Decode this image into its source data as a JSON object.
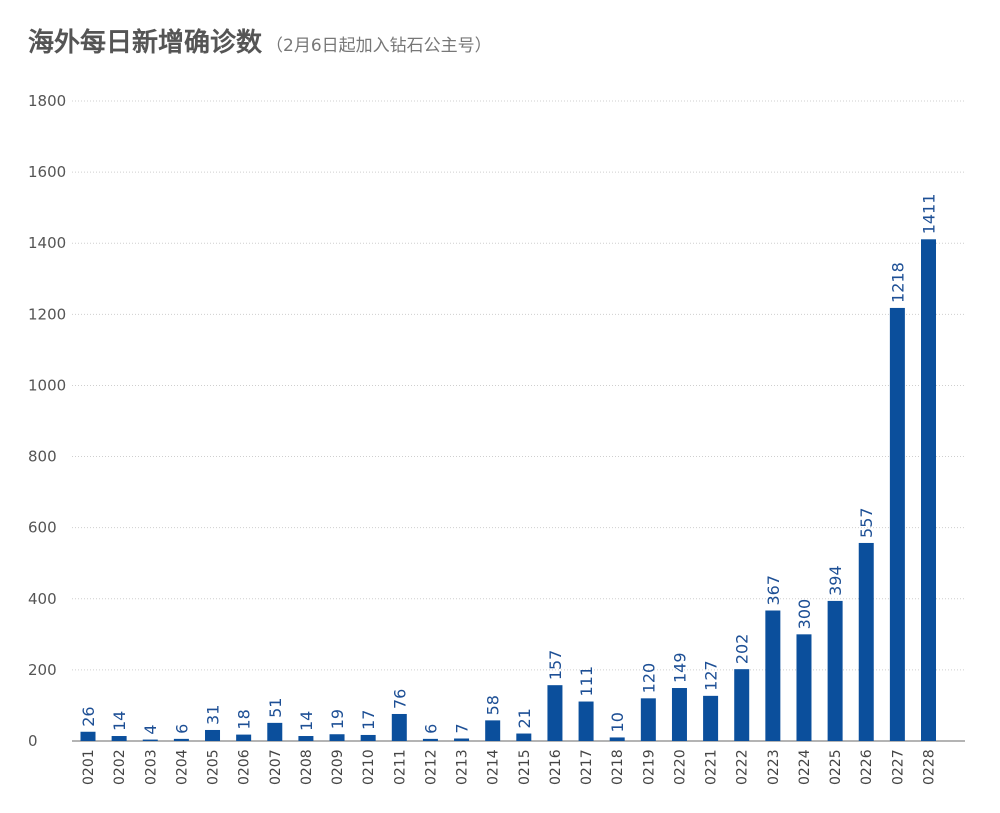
{
  "chart_data": {
    "type": "bar",
    "title": "海外每日新增确诊数",
    "subtitle": "（2月6日起加入钻石公主号）",
    "xlabel": "",
    "ylabel": "",
    "ylim": [
      0,
      1800
    ],
    "yticks": [
      0,
      200,
      400,
      600,
      800,
      1000,
      1200,
      1400,
      1600,
      1800
    ],
    "grid": true,
    "bar_color": "#0b4f9c",
    "label_color": "#1d4f95",
    "categories": [
      "0201",
      "0202",
      "0203",
      "0204",
      "0205",
      "0206",
      "0207",
      "0208",
      "0209",
      "0210",
      "0211",
      "0212",
      "0213",
      "0214",
      "0215",
      "0216",
      "0217",
      "0218",
      "0219",
      "0220",
      "0221",
      "0222",
      "0223",
      "0224",
      "0225",
      "0226",
      "0227",
      "0228"
    ],
    "values": [
      26,
      14,
      4,
      6,
      31,
      18,
      51,
      14,
      19,
      17,
      76,
      6,
      7,
      58,
      21,
      157,
      111,
      10,
      120,
      149,
      127,
      202,
      367,
      300,
      394,
      557,
      1218,
      1411
    ]
  }
}
